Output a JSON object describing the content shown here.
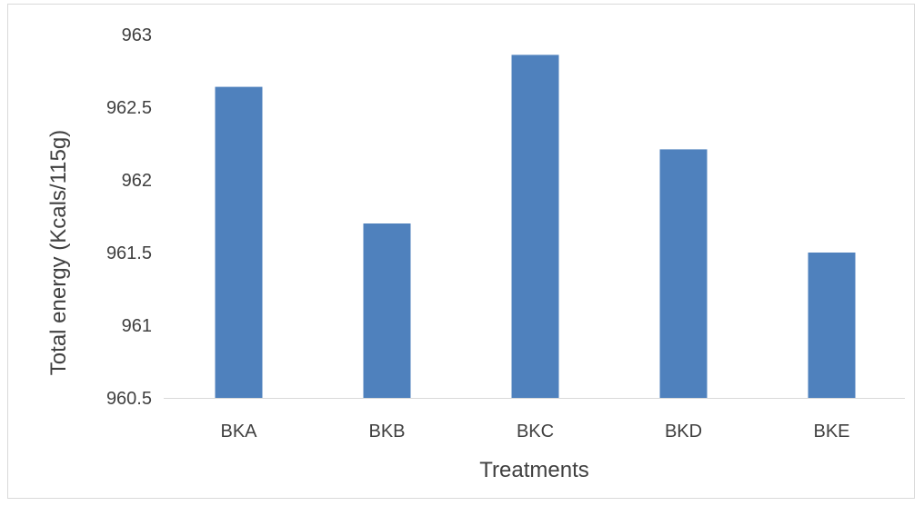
{
  "chart_data": {
    "type": "bar",
    "categories": [
      "BKA",
      "BKB",
      "BKC",
      "BKD",
      "BKE"
    ],
    "values": [
      962.64,
      961.7,
      962.86,
      962.21,
      961.5
    ],
    "title": "",
    "xlabel": "Treatments",
    "ylabel": "Total energy (Kcals/115g)",
    "ylim": [
      960.5,
      963
    ],
    "yticks": [
      "960.5",
      "961",
      "961.5",
      "962",
      "962.5",
      "963"
    ],
    "grid": false,
    "legend": "none",
    "bar_color": "#4f81bd",
    "axis_color": "#d9d9d9"
  }
}
